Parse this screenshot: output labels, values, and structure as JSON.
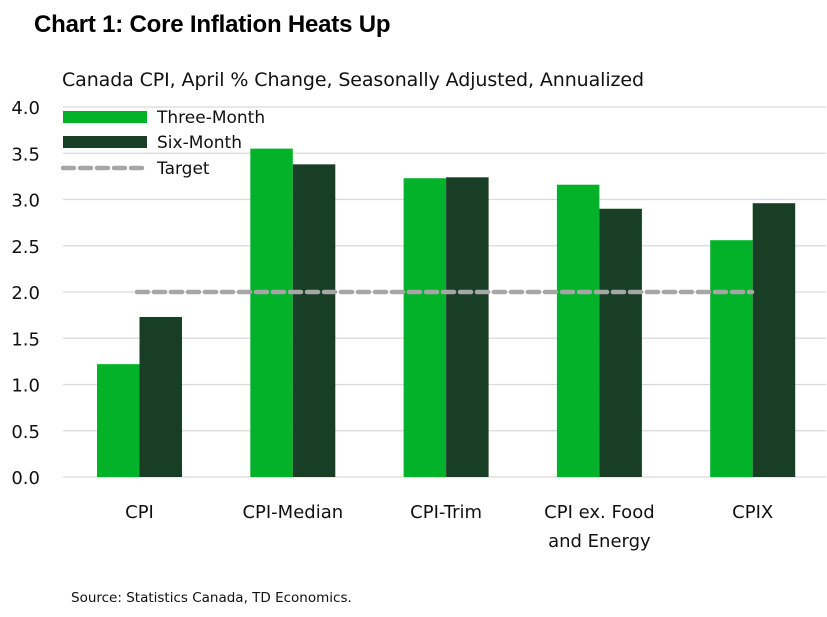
{
  "chart_data": {
    "type": "bar",
    "title": "Chart 1: Core Inflation Heats Up",
    "subtitle": "Canada CPI, April % Change, Seasonally Adjusted, Annualized",
    "xlabel": "",
    "ylabel": "",
    "ylim": [
      0,
      4
    ],
    "yticks": [
      0.0,
      0.5,
      1.0,
      1.5,
      2.0,
      2.5,
      3.0,
      3.5,
      4.0
    ],
    "ytick_labels": [
      "0.0",
      "0.5",
      "1.0",
      "1.5",
      "2.0",
      "2.5",
      "3.0",
      "3.5",
      "4.0"
    ],
    "grid": true,
    "legend_position": "top-left",
    "categories": [
      "CPI",
      "CPI-Median",
      "CPI-Trim",
      "CPI ex. Food and Energy",
      "CPIX"
    ],
    "category_label_lines": [
      [
        "CPI"
      ],
      [
        "CPI-Median"
      ],
      [
        "CPI-Trim"
      ],
      [
        "CPI ex. Food",
        "and Energy"
      ],
      [
        "CPIX"
      ]
    ],
    "series": [
      {
        "name": "Three-Month",
        "color": "#02b32a",
        "values": [
          1.22,
          3.55,
          3.23,
          3.16,
          2.56
        ]
      },
      {
        "name": "Six-Month",
        "color": "#183f25",
        "values": [
          1.73,
          3.38,
          3.24,
          2.9,
          2.96
        ]
      }
    ],
    "reference_lines": [
      {
        "name": "Target",
        "value": 2.0,
        "color": "#a6a6a6",
        "style": "dashed"
      }
    ],
    "source": "Source: Statistics Canada, TD Economics."
  }
}
